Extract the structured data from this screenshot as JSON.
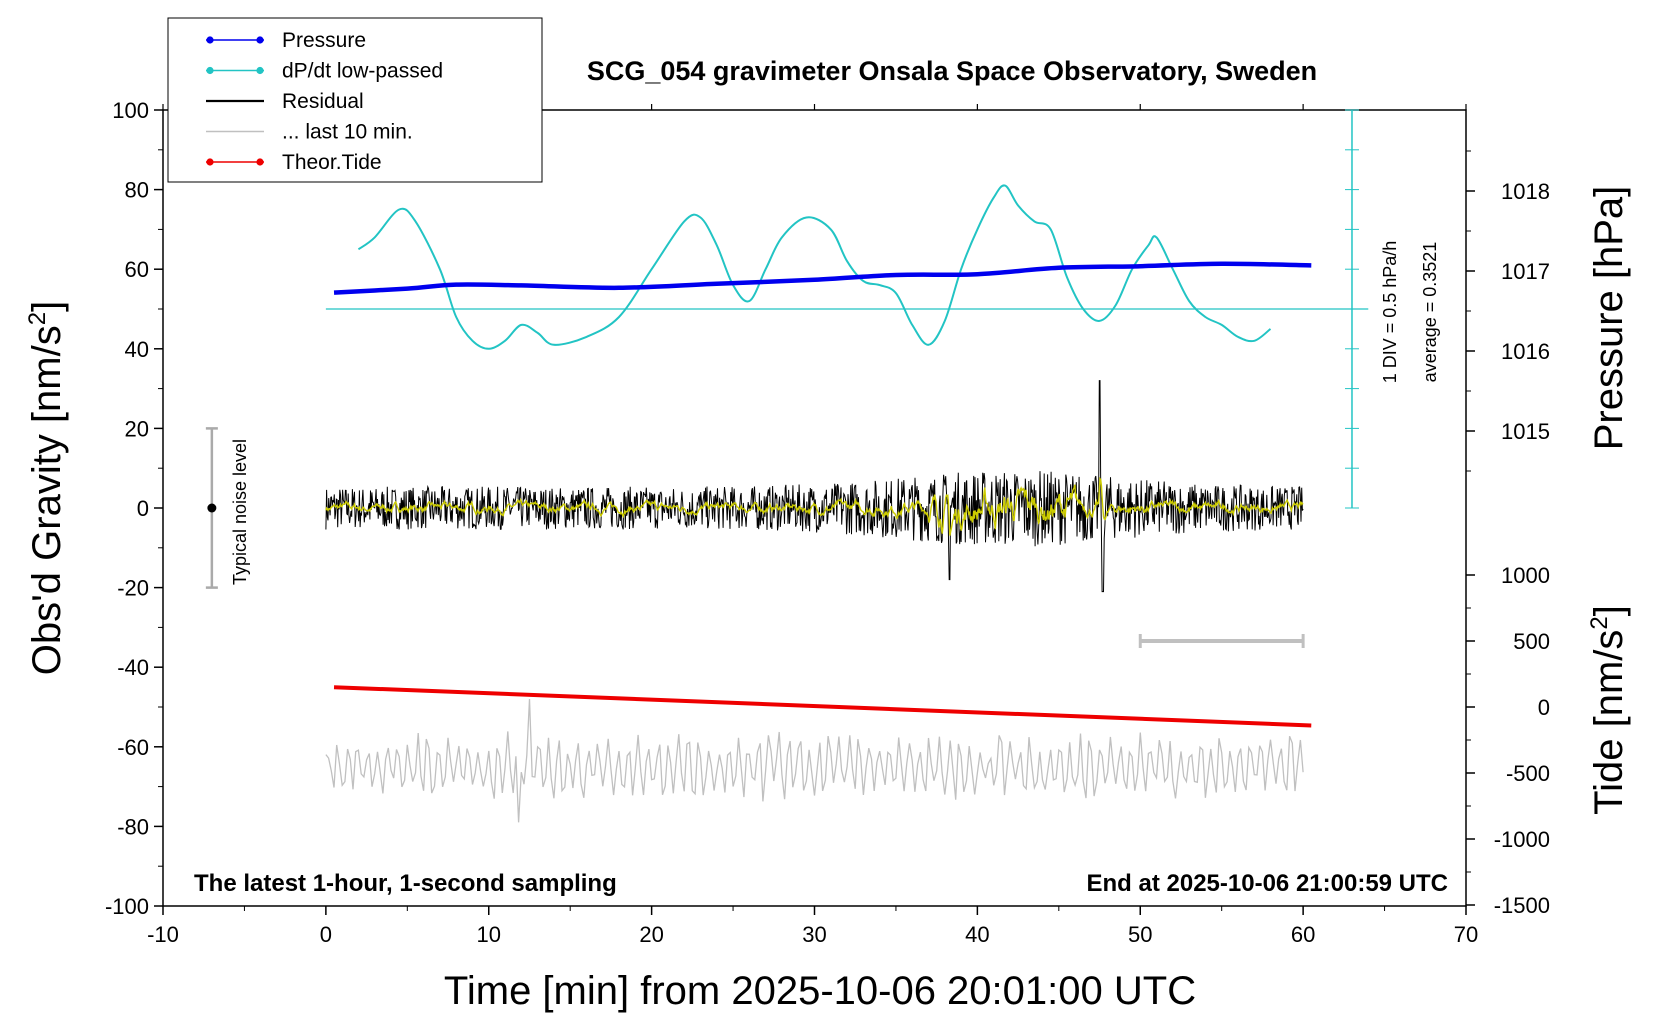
{
  "chart_data": {
    "type": "line",
    "title": "SCG_054 gravimeter Onsala Space Observatory, Sweden",
    "xlabel": "Time [min] from 2025-10-06 20:01:00 UTC",
    "ylabel_left": "Obs'd Gravity [nm/s",
    "ylabel_left_sup": "2",
    "ylabel_left_close": "]",
    "ylabel_right_top": "Pressure [hPa]",
    "ylabel_right_bottom": "Tide [nm/s",
    "ylabel_right_bottom_sup": "2",
    "ylabel_right_bottom_close": "]",
    "xlim": [
      -10,
      70
    ],
    "ylim_left": [
      -100,
      100
    ],
    "xticks": [
      "-10",
      "0",
      "10",
      "20",
      "30",
      "40",
      "50",
      "60",
      "70"
    ],
    "yticks_left": [
      "-100",
      "-80",
      "-60",
      "-40",
      "-20",
      "0",
      "20",
      "40",
      "60",
      "80",
      "100"
    ],
    "pressure_ticks": [
      "1015",
      "1016",
      "1017",
      "1018"
    ],
    "tide_ticks": [
      "-1500",
      "-1000",
      "-500",
      "0",
      "500",
      "1000"
    ],
    "annotation_left": "The latest 1-hour, 1-second sampling",
    "annotation_right": "End at 2025-10-06 21:00:59 UTC",
    "noise_label": "Typical noise level",
    "dpdt_scale": "1 DIV = 0.5 hPa/h",
    "dpdt_average": "average = 0.3521",
    "legend_position": "top-left",
    "legend": [
      {
        "name": "Pressure",
        "color": "#0000ee",
        "marker": true
      },
      {
        "name": "dP/dt low-passed",
        "color": "#22c4c4",
        "marker": true
      },
      {
        "name": "Residual",
        "color": "#000000",
        "marker": false
      },
      {
        "name": "... last 10 min.",
        "color": "#c0c0c0",
        "marker": false
      },
      {
        "name": "Theor.Tide",
        "color": "#ee0000",
        "marker": true
      }
    ],
    "series": [
      {
        "name": "Pressure",
        "axis": "pressure_hPa",
        "x": [
          0.5,
          5,
          8,
          12,
          18,
          24,
          30,
          35,
          40,
          45,
          50,
          55,
          60.5
        ],
        "values": [
          1016.73,
          1016.78,
          1016.83,
          1016.82,
          1016.79,
          1016.84,
          1016.89,
          1016.95,
          1016.96,
          1017.04,
          1017.06,
          1017.09,
          1017.07
        ]
      },
      {
        "name": "dP/dt low-passed",
        "axis": "gravity_units",
        "x": [
          2,
          3,
          4.5,
          5.5,
          7,
          8,
          9,
          10,
          11,
          12,
          13,
          14,
          16,
          18,
          20,
          22,
          23,
          24,
          25,
          26,
          27,
          28,
          29.5,
          31,
          32,
          33,
          34,
          35,
          36,
          37,
          38,
          39,
          40,
          41,
          41.7,
          42.5,
          43.5,
          44.5,
          45.5,
          46.5,
          47.5,
          48.5,
          49.5,
          50.5,
          51,
          52,
          53,
          54,
          55,
          56,
          57,
          58
        ],
        "values": [
          65,
          68,
          75,
          72,
          60,
          48,
          42,
          40,
          42,
          46,
          44,
          41,
          43,
          48,
          60,
          72,
          73,
          66,
          56,
          52,
          60,
          68,
          73,
          70,
          62,
          57,
          56,
          54,
          46,
          41,
          47,
          60,
          70,
          78,
          81,
          76,
          72,
          70,
          58,
          50,
          47,
          51,
          60,
          66,
          68,
          60,
          52,
          48,
          46,
          43,
          42,
          45
        ]
      },
      {
        "name": "Residual",
        "axis": "gravity_units",
        "x_range": [
          0,
          60
        ],
        "sampling": "1 s",
        "mean": 0,
        "typical_amplitude": 6,
        "extremes": {
          "max": 32,
          "min": -21
        }
      },
      {
        "name": "Residual smoothed",
        "axis": "gravity_units",
        "color": "#cccc00",
        "x_range": [
          0,
          60
        ],
        "mean": 0
      },
      {
        "name": "... last 10 min.",
        "axis": "gravity_units",
        "offset": -65,
        "x_range": [
          0,
          60
        ],
        "typical_amplitude": 6,
        "extremes": {
          "max": -48,
          "min": -79
        }
      },
      {
        "name": "Theor.Tide",
        "axis": "tide_nm_s2",
        "x": [
          0.5,
          60.5
        ],
        "values": [
          150,
          -140
        ]
      }
    ],
    "dpdt_reference_level": 50,
    "noise_bar": {
      "x": -7,
      "center": 0,
      "half_range": 20
    },
    "time_bar_x": [
      50,
      60
    ],
    "time_bar_tide_level": 500
  }
}
